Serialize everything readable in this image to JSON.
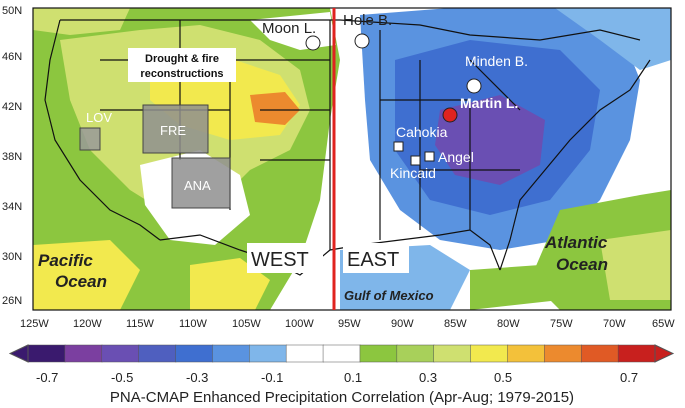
{
  "map": {
    "lat_labels": [
      "26N",
      "30N",
      "34N",
      "38N",
      "42N",
      "46N",
      "50N"
    ],
    "lon_labels": [
      "125W",
      "120W",
      "115W",
      "110W",
      "105W",
      "100W",
      "95W",
      "90W",
      "85W",
      "80W",
      "75W",
      "70W",
      "65W"
    ],
    "note_line1": "Drought & fire",
    "note_line2": "reconstructions",
    "regions": {
      "lov": "LOV",
      "fre": "FRE",
      "ana": "ANA"
    },
    "sites": {
      "moon": "Moon L.",
      "hole": "Hole B.",
      "minden": "Minden B.",
      "martin": "Martin L.",
      "cahokia": "Cahokia",
      "angel": "Angel",
      "kincaid": "Kincaid"
    },
    "west_label": "WEST",
    "east_label": "EAST",
    "pacific_line1": "Pacific",
    "pacific_line2": "Ocean",
    "atlantic_line1": "Atlantic",
    "atlantic_line2": "Ocean",
    "gulf_label": "Gulf of Mexico",
    "divider_longitude": "96W",
    "colors": {
      "divider": "#e0231f",
      "martin_marker": "#e0231f",
      "land_base": "#8cc63f"
    }
  },
  "colorbar": {
    "tick_labels": [
      "-0.7",
      "-0.5",
      "-0.3",
      "-0.1",
      "0.1",
      "0.3",
      "0.5",
      "0.7"
    ],
    "colors": [
      "#3a1a6e",
      "#7b3fa0",
      "#6a4fb3",
      "#4f5fbf",
      "#3f6fd0",
      "#5a93e0",
      "#7fb6ea",
      "#ffffff",
      "#ffffff",
      "#8cc63f",
      "#a8d05a",
      "#cfe070",
      "#f2e94e",
      "#f3c13a",
      "#ec8a2e",
      "#e05a25",
      "#c8201e"
    ],
    "title": "PNA-CMAP Enhanced Precipitation Correlation (Apr-Aug; 1979-2015)"
  }
}
